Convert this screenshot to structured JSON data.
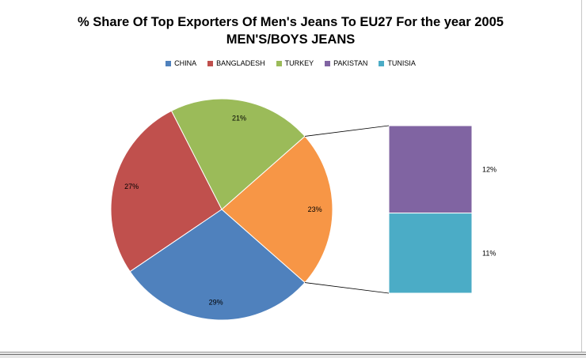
{
  "chart_data": {
    "type": "pie",
    "title": "% Share Of Top Exporters Of Men's Jeans To EU27 For the year 2005",
    "subtitle": "MEN'S/BOYS JEANS",
    "legend_position": "top",
    "categories": [
      "CHINA",
      "BANGLADESH",
      "TURKEY",
      "PAKISTAN",
      "TUNISIA"
    ],
    "values": [
      29,
      27,
      21,
      12,
      11
    ],
    "labels": [
      "29%",
      "27%",
      "21%",
      "12%",
      "11%"
    ],
    "colors": [
      "#4F81BD",
      "#C0504D",
      "#9BBB59",
      "#8064A2",
      "#4BACC6"
    ],
    "other_slice": {
      "value": 23,
      "label": "23%",
      "color": "#F79646"
    },
    "secondary_breakdown": [
      "PAKISTAN",
      "TUNISIA"
    ],
    "style": "pie-of-bar"
  }
}
